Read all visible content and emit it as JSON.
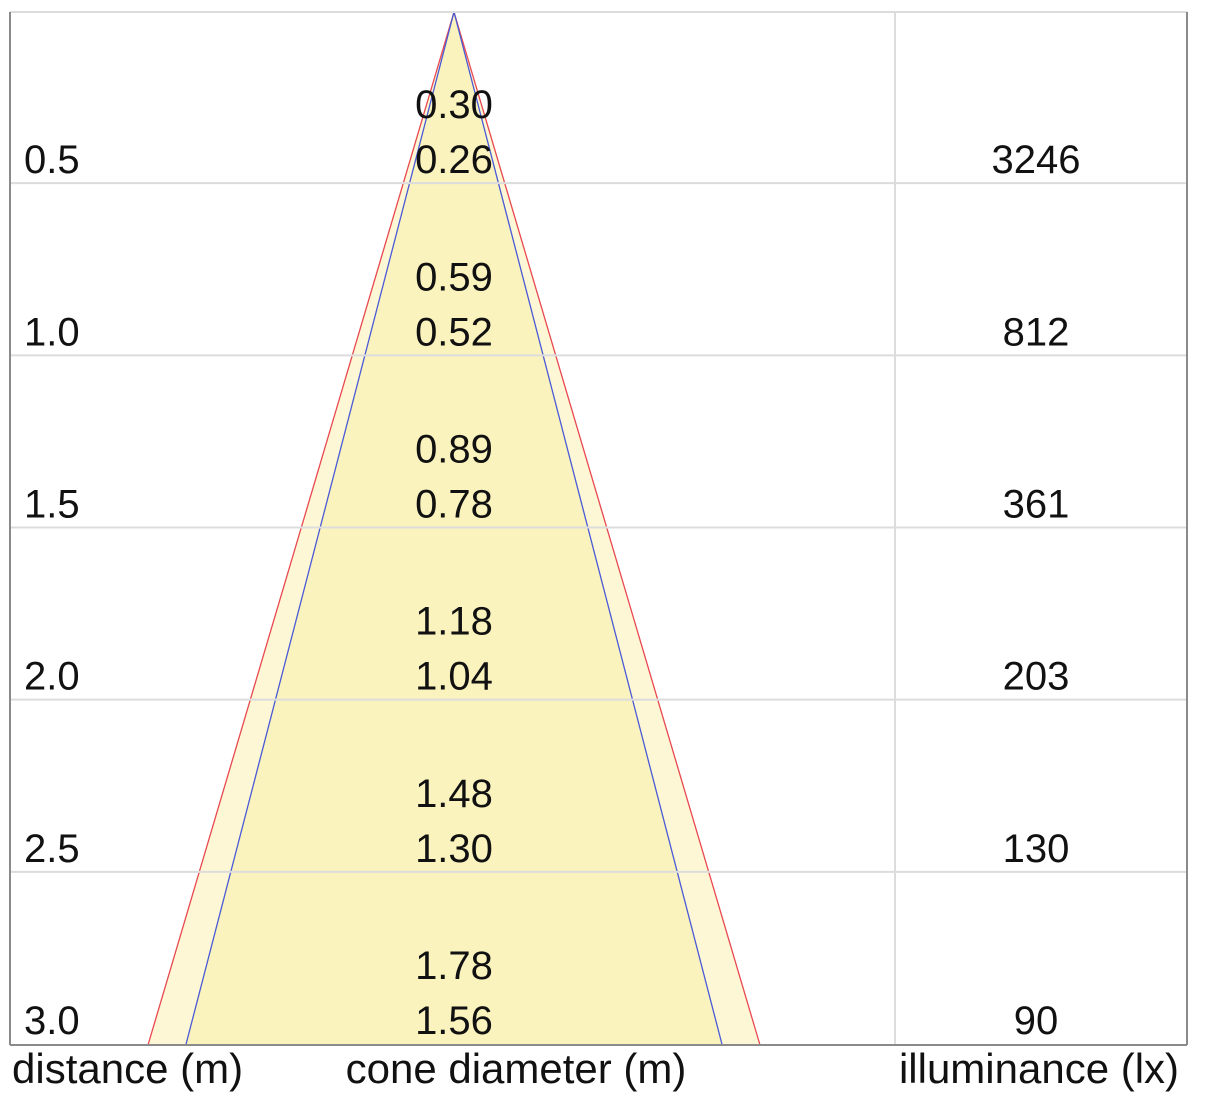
{
  "chart_data": {
    "type": "table",
    "columns": {
      "left": "distance (m)",
      "center": "cone diameter (m)",
      "right": "illuminance (lx)"
    },
    "rows": [
      {
        "distance": "0.5",
        "diameter_outer": "0.30",
        "diameter_inner": "0.26",
        "illuminance": "3246"
      },
      {
        "distance": "1.0",
        "diameter_outer": "0.59",
        "diameter_inner": "0.52",
        "illuminance": "812"
      },
      {
        "distance": "1.5",
        "diameter_outer": "0.89",
        "diameter_inner": "0.78",
        "illuminance": "361"
      },
      {
        "distance": "2.0",
        "diameter_outer": "1.18",
        "diameter_inner": "1.04",
        "illuminance": "203"
      },
      {
        "distance": "2.5",
        "diameter_outer": "1.48",
        "diameter_inner": "1.30",
        "illuminance": "130"
      },
      {
        "distance": "3.0",
        "diameter_outer": "1.78",
        "diameter_inner": "1.56",
        "illuminance": "90"
      }
    ],
    "max_distance": 3.0,
    "colors": {
      "outer_cone_fill": "#fdf7d5",
      "inner_cone_fill": "#faf3bd",
      "outer_cone_line": "#e8484f",
      "inner_cone_line": "#4a5ad6",
      "grid": "#dcdcdc",
      "frame": "#8a8a8a"
    }
  }
}
